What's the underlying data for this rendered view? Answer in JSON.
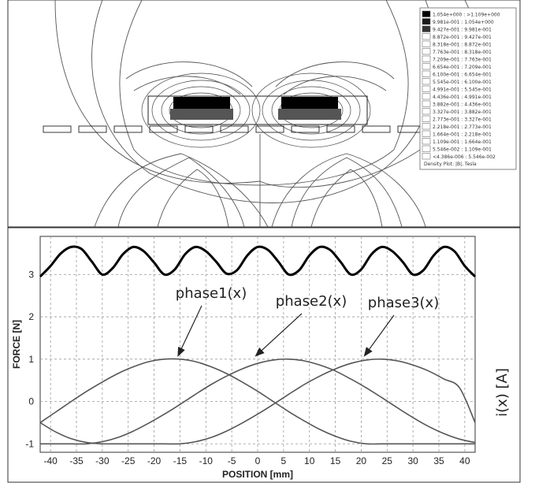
{
  "fem_panel": {
    "legend": {
      "entries": [
        "1.054e+000 : >1.109e+000",
        "9.981e-001 : 1.054e+000",
        "9.427e-001 : 9.981e-001",
        "8.872e-001 : 9.427e-001",
        "8.318e-001 : 8.872e-001",
        "7.763e-001 : 8.318e-001",
        "7.209e-001 : 7.763e-001",
        "6.654e-001 : 7.209e-001",
        "6.100e-001 : 6.654e-001",
        "5.545e-001 : 6.100e-001",
        "4.991e-001 : 5.545e-001",
        "4.436e-001 : 4.991e-001",
        "3.882e-001 : 4.436e-001",
        "3.327e-001 : 3.882e-001",
        "2.773e-001 : 3.327e-001",
        "2.218e-001 : 2.773e-001",
        "1.664e-001 : 2.218e-001",
        "1.109e-001 : 1.664e-001",
        "5.546e-002 : 1.109e-001",
        "<4.386e-006 : 5.546e-002"
      ],
      "swatch_colors": [
        "#000000",
        "#1a1a1a",
        "#333333",
        "#ffffff",
        "#ffffff",
        "#ffffff",
        "#ffffff",
        "#ffffff",
        "#ffffff",
        "#ffffff",
        "#ffffff",
        "#ffffff",
        "#ffffff",
        "#ffffff",
        "#ffffff",
        "#ffffff",
        "#ffffff",
        "#ffffff",
        "#ffffff",
        "#ffffff"
      ],
      "footer": "Density Plot: |B|, Tesla"
    }
  },
  "chart_data": {
    "type": "line",
    "xlabel": "POSITION [mm]",
    "ylabel": "FORCE [N]",
    "right_label": "i(x) [A]",
    "xlim": [
      -42,
      42
    ],
    "ylim": [
      -1.2,
      3.9
    ],
    "xticks": [
      -40,
      -35,
      -30,
      -25,
      -20,
      -15,
      -10,
      -5,
      0,
      5,
      10,
      15,
      20,
      25,
      30,
      35,
      40
    ],
    "yticks": [
      -1,
      0,
      1,
      2,
      3
    ],
    "grid": true,
    "series": [
      {
        "role": "force",
        "x": [
          -42,
          -40,
          -38,
          -36,
          -34,
          -32,
          -30,
          -28,
          -26,
          -24,
          -22,
          -20,
          -18,
          -16,
          -14,
          -12,
          -10,
          -8,
          -6,
          -4,
          -2,
          0,
          2,
          4,
          6,
          8,
          10,
          12,
          14,
          16,
          18,
          20,
          22,
          24,
          26,
          28,
          30,
          32,
          34,
          36,
          38,
          40,
          42
        ],
        "y": [
          2.95,
          3.2,
          3.5,
          3.65,
          3.6,
          3.3,
          3.0,
          3.15,
          3.48,
          3.65,
          3.55,
          3.28,
          3.0,
          3.12,
          3.48,
          3.65,
          3.55,
          3.3,
          3.02,
          3.1,
          3.45,
          3.65,
          3.58,
          3.3,
          3.0,
          3.1,
          3.45,
          3.65,
          3.58,
          3.3,
          3.0,
          3.12,
          3.48,
          3.65,
          3.55,
          3.3,
          3.0,
          3.1,
          3.45,
          3.65,
          3.55,
          3.2,
          2.95
        ],
        "color": "#000000"
      },
      {
        "name": "phase1(x)",
        "x": [
          -42,
          -39,
          -36,
          -33,
          -30,
          -27,
          -24,
          -21,
          -18,
          -15,
          -12,
          -9,
          -6,
          -3,
          0,
          3,
          6,
          9,
          12,
          15,
          18,
          21,
          24,
          27,
          30,
          33,
          36,
          39,
          42
        ],
        "y": [
          -0.5,
          -0.25,
          0.0,
          0.24,
          0.46,
          0.66,
          0.82,
          0.94,
          1.0,
          1.0,
          0.94,
          0.82,
          0.66,
          0.46,
          0.24,
          0.0,
          -0.24,
          -0.46,
          -0.66,
          -0.82,
          -0.94,
          -1.0,
          -1.0,
          -1.0,
          -1.0,
          -1.0,
          -1.0,
          -1.0,
          -1.0
        ],
        "color": "#555555"
      },
      {
        "name": "phase2(x)",
        "x": [
          -42,
          -39,
          -36,
          -33,
          -30,
          -27,
          -24,
          -21,
          -18,
          -15,
          -12,
          -9,
          -6,
          -3,
          0,
          3,
          6,
          9,
          12,
          15,
          18,
          21,
          24,
          27,
          30,
          33,
          36,
          39,
          42
        ],
        "y": [
          -1.0,
          -1.0,
          -1.0,
          -1.0,
          -0.95,
          -0.85,
          -0.7,
          -0.51,
          -0.3,
          -0.07,
          0.17,
          0.4,
          0.6,
          0.77,
          0.9,
          0.98,
          1.0,
          0.96,
          0.86,
          0.72,
          0.53,
          0.32,
          0.09,
          -0.15,
          -0.38,
          -0.59,
          -0.76,
          -0.89,
          -0.97
        ],
        "color": "#555555"
      },
      {
        "name": "phase3(x)",
        "x": [
          -42,
          -39,
          -36,
          -33,
          -30,
          -27,
          -24,
          -21,
          -18,
          -15,
          -12,
          -9,
          -6,
          -3,
          0,
          3,
          6,
          9,
          12,
          15,
          18,
          21,
          24,
          27,
          30,
          33,
          36,
          39,
          42
        ],
        "y": [
          -0.5,
          -0.72,
          -0.88,
          -0.97,
          -1.0,
          -1.0,
          -1.0,
          -1.0,
          -1.0,
          -1.0,
          -0.95,
          -0.85,
          -0.7,
          -0.51,
          -0.3,
          -0.07,
          0.17,
          0.4,
          0.6,
          0.77,
          0.9,
          0.98,
          1.0,
          0.96,
          0.86,
          0.72,
          0.53,
          0.32,
          -0.5
        ],
        "color": "#555555"
      }
    ],
    "annotations": [
      {
        "text": "phase1(x)",
        "target_x": -16,
        "target_y": 1.0
      },
      {
        "text": "phase2(x)",
        "target_x": -1,
        "target_y": 1.0
      },
      {
        "text": "phase3(x)",
        "target_x": 20,
        "target_y": 1.0
      }
    ]
  }
}
